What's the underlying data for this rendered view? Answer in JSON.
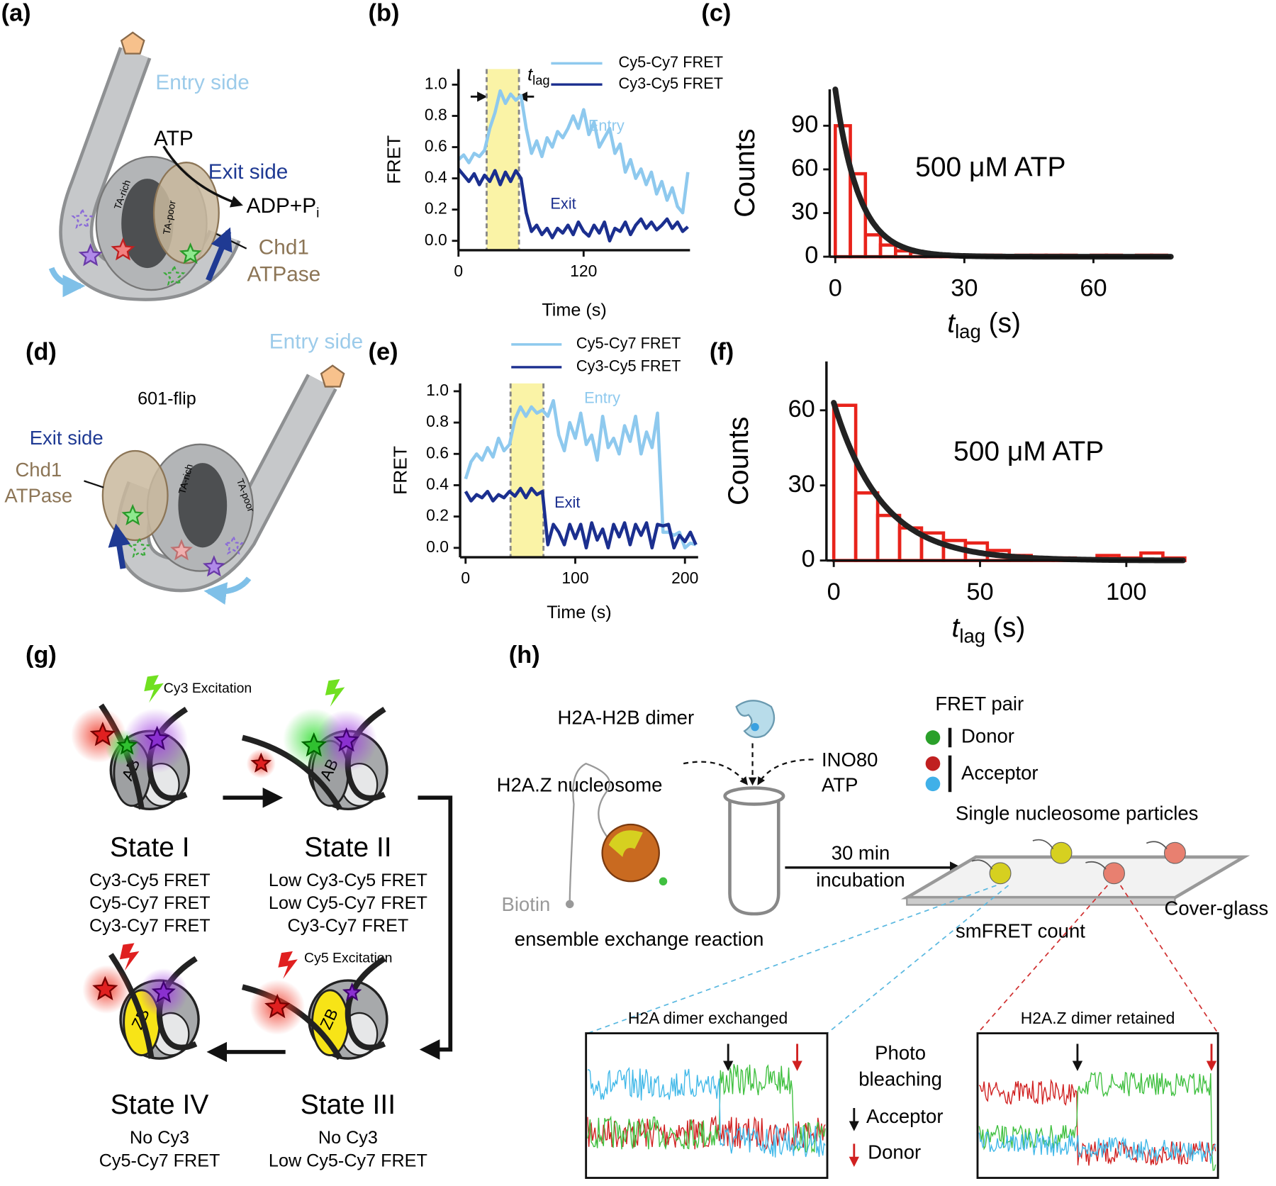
{
  "panel_labels": [
    "(a)",
    "(b)",
    "(c)",
    "(d)",
    "(e)",
    "(f)",
    "(g)",
    "(h)"
  ],
  "panel_a": {
    "entry": "Entry side",
    "atp": "ATP",
    "exit": "Exit side",
    "product": "ADP+P",
    "product_sub": "i",
    "ta_rich": "TA-rich",
    "ta_poor": "TA-poor",
    "enzyme": [
      "Chd1",
      "ATPase"
    ]
  },
  "panel_d": {
    "entry": "Entry side",
    "construct": "601-flip",
    "exit": "Exit side",
    "enzyme": [
      "Chd1",
      "ATPase"
    ],
    "ta_rich": "TA-rich",
    "ta_poor": "TA-poor"
  },
  "chart_data": [
    {
      "type": "line",
      "ylabel": "FRET",
      "xlabel": "Time (s)",
      "xlim": [
        0,
        222
      ],
      "ylim": [
        -0.06,
        1.1
      ],
      "xticks": [
        0,
        120
      ],
      "yticks": [
        {
          "value": 0,
          "label": "0.0"
        },
        0.2,
        0.4,
        0.6,
        0.8,
        {
          "value": 1,
          "label": "1.0"
        }
      ],
      "highlight": [
        27,
        58
      ],
      "x": [
        0,
        5,
        10,
        15,
        20,
        25,
        30,
        35,
        40,
        45,
        50,
        55,
        60,
        65,
        70,
        75,
        80,
        85,
        90,
        95,
        100,
        105,
        110,
        115,
        120,
        125,
        130,
        135,
        140,
        145,
        150,
        155,
        160,
        165,
        170,
        175,
        180,
        185,
        190,
        195,
        200,
        205,
        210,
        215,
        220
      ],
      "series": [
        {
          "name": "Cy5-Cy7 FRET",
          "color": "#8ec9ee",
          "values": [
            0.52,
            0.55,
            0.5,
            0.56,
            0.54,
            0.58,
            0.72,
            0.82,
            0.96,
            0.88,
            0.94,
            0.9,
            0.93,
            0.72,
            0.56,
            0.64,
            0.54,
            0.66,
            0.6,
            0.7,
            0.66,
            0.72,
            0.8,
            0.72,
            0.84,
            0.68,
            0.76,
            0.6,
            0.66,
            0.72,
            0.56,
            0.62,
            0.44,
            0.52,
            0.4,
            0.46,
            0.36,
            0.44,
            0.3,
            0.38,
            0.26,
            0.34,
            0.22,
            0.18,
            0.44
          ]
        },
        {
          "name": "Cy3-Cy5 FRET",
          "color": "#1b2f8f",
          "values": [
            0.46,
            0.42,
            0.38,
            0.43,
            0.36,
            0.42,
            0.38,
            0.45,
            0.36,
            0.44,
            0.38,
            0.45,
            0.4,
            0.18,
            0.06,
            0.1,
            0.04,
            0.08,
            0.02,
            0.08,
            0.05,
            0.1,
            0.04,
            0.12,
            0.06,
            0.03,
            0.1,
            0.05,
            0.12,
            0.0,
            0.08,
            0.06,
            0.12,
            0.04,
            0.1,
            0.14,
            0.08,
            0.12,
            0.07,
            0.1,
            0.14,
            0.08,
            0.12,
            0.06,
            0.09
          ]
        }
      ],
      "annotations": [
        "Entry",
        "Exit"
      ],
      "lag_label": {
        "symbol": "t",
        "subscript": "lag"
      }
    },
    {
      "type": "histogram",
      "ylabel": "Counts",
      "xlabel": {
        "symbol": "t",
        "subscript": "lag",
        "unit": " (s)"
      },
      "annotation": "500 μM ATP",
      "xlim": [
        -1.3,
        78
      ],
      "ylim": [
        0,
        115
      ],
      "xticks": [
        0,
        30,
        60
      ],
      "yticks": [
        0,
        30,
        60,
        90
      ],
      "color": "#e8231b",
      "bins": [
        0,
        3.5,
        7,
        10.5,
        14,
        17.5,
        21,
        24.5,
        28,
        31.5,
        35,
        38.5,
        42,
        45.5,
        49,
        52.5,
        56,
        59.5,
        63,
        66.5,
        70,
        73.5,
        77
      ],
      "counts": [
        90,
        57,
        15,
        8,
        4,
        3,
        2,
        1,
        1,
        1,
        1,
        0,
        1,
        1,
        1,
        1,
        0,
        1,
        1,
        0,
        1,
        1
      ],
      "fit": {
        "amplitude": 115,
        "tau": 5.5,
        "color": "#222222"
      }
    },
    {
      "type": "line",
      "ylabel": "FRET",
      "xlabel": "Time (s)",
      "xlim": [
        -5,
        212
      ],
      "ylim": [
        -0.06,
        1.05
      ],
      "xticks": [
        0,
        100,
        200
      ],
      "yticks": [
        {
          "value": 0,
          "label": "0.0"
        },
        0.2,
        0.4,
        0.6,
        0.8,
        {
          "value": 1,
          "label": "1.0"
        }
      ],
      "highlight": [
        41,
        71
      ],
      "x": [
        0,
        5,
        10,
        15,
        20,
        25,
        30,
        35,
        40,
        45,
        50,
        55,
        60,
        65,
        70,
        75,
        80,
        85,
        90,
        95,
        100,
        105,
        110,
        115,
        120,
        125,
        130,
        135,
        140,
        145,
        150,
        155,
        160,
        165,
        170,
        175,
        180,
        185,
        190,
        195,
        200,
        205,
        210
      ],
      "series": [
        {
          "name": "Cy5-Cy7 FRET",
          "color": "#8ec9ee",
          "values": [
            0.44,
            0.55,
            0.6,
            0.56,
            0.64,
            0.58,
            0.7,
            0.62,
            0.66,
            0.82,
            0.9,
            0.84,
            0.9,
            0.86,
            0.88,
            0.84,
            0.94,
            0.72,
            0.62,
            0.8,
            0.7,
            0.86,
            0.66,
            0.72,
            0.56,
            0.84,
            0.64,
            0.7,
            0.6,
            0.78,
            0.68,
            0.84,
            0.6,
            0.74,
            0.64,
            0.86,
            0.1,
            0.1,
            0.08,
            0.1,
            0.0,
            0.03,
            0.02
          ]
        },
        {
          "name": "Cy3-Cy5 FRET",
          "color": "#1b2f8f",
          "values": [
            0.36,
            0.3,
            0.34,
            0.32,
            0.36,
            0.3,
            0.34,
            0.32,
            0.36,
            0.33,
            0.38,
            0.32,
            0.38,
            0.34,
            0.36,
            0.02,
            0.15,
            0.1,
            0.02,
            0.15,
            0.06,
            0.15,
            0.0,
            0.16,
            0.05,
            0.12,
            0.0,
            0.15,
            0.07,
            0.16,
            0.02,
            0.15,
            0.08,
            0.16,
            0.0,
            0.15,
            0.14,
            0.15,
            0.0,
            0.08,
            0.04,
            0.1,
            0.02
          ]
        }
      ],
      "annotations": [
        "Entry",
        "Exit"
      ]
    },
    {
      "type": "histogram",
      "ylabel": "Counts",
      "xlabel": {
        "symbol": "t",
        "subscript": "lag",
        "unit": " (s)"
      },
      "annotation": "500 μM ATP",
      "xlim": [
        -2.5,
        119.4
      ],
      "ylim": [
        0,
        79.5
      ],
      "xticks": [
        0,
        50,
        100
      ],
      "yticks": [
        0,
        30,
        60
      ],
      "color": "#e8231b",
      "bins": [
        0,
        7.5,
        15,
        22.5,
        30,
        37.5,
        45,
        52.5,
        60,
        67.5,
        75,
        82.5,
        90,
        97.5,
        105,
        112.5,
        120
      ],
      "counts": [
        62,
        27,
        18,
        13,
        11,
        8,
        7,
        4,
        2,
        1,
        1,
        0,
        2,
        1,
        3,
        1
      ],
      "fit": {
        "amplitude": 63,
        "tau": 16.5,
        "color": "#222222"
      }
    }
  ],
  "panel_g": {
    "excitation": [
      "Cy3 Excitation",
      "Cy5 Excitation"
    ],
    "states": [
      {
        "name": "State I",
        "dimer": "AB",
        "lines": [
          "Cy3-Cy5 FRET",
          "Cy5-Cy7 FRET",
          "Cy3-Cy7 FRET"
        ]
      },
      {
        "name": "State II",
        "dimer": "AB",
        "lines": [
          "Low Cy3-Cy5 FRET",
          "Low Cy5-Cy7 FRET",
          "Cy3-Cy7 FRET"
        ]
      },
      {
        "name": "State III",
        "dimer": "ZB",
        "lines": [
          "No Cy3",
          "Low Cy5-Cy7 FRET"
        ]
      },
      {
        "name": "State IV",
        "dimer": "ZB",
        "lines": [
          "No Cy3",
          "Cy5-Cy7 FRET"
        ]
      }
    ]
  },
  "panel_h": {
    "dimer": "H2A-H2B dimer",
    "nucleosome": "H2A.Z nucleosome",
    "enzyme": [
      "INO80",
      "ATP"
    ],
    "fret_pair": "FRET pair",
    "donor": "Donor",
    "acceptor": "Acceptor",
    "particles": "Single nucleosome particles",
    "incubation": [
      "30 min",
      "incubation"
    ],
    "biotin": "Biotin",
    "reaction": "ensemble exchange reaction",
    "glass": "Cover-glass",
    "count": "smFRET count",
    "trace_titles": [
      "H2A dimer exchanged",
      "H2A.Z dimer retained"
    ],
    "photobleaching": [
      "Photo",
      "bleaching"
    ],
    "arrow_keys": [
      "Acceptor",
      "Donor"
    ]
  }
}
